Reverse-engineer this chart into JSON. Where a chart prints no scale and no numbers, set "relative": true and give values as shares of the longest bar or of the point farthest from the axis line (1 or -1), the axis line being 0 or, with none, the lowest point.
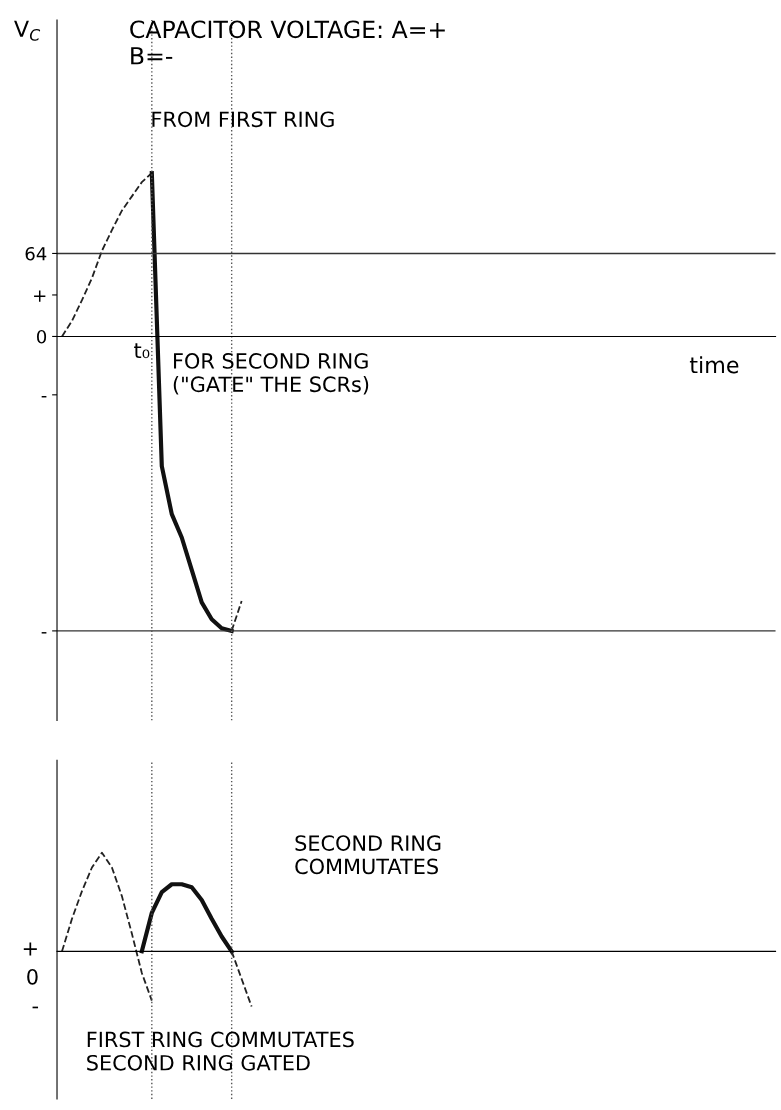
{
  "chart_data": [
    {
      "type": "line",
      "title": "CAPACITOR VOLTAGE: A=+\nB=-",
      "ylabel": "V$_{C}$",
      "xlabel": "time",
      "grid": false,
      "legend": false,
      "marker": "none",
      "tick_labels": "y",
      "categories": [
        null,
        null,
        null,
        null,
        null,
        null,
        null,
        null,
        null,
        null,
        null,
        null,
        null,
        null,
        null,
        null,
        null,
        null,
        null,
        null,
        null,
        null,
        null,
        null,
        null,
        null,
        null,
        null,
        null,
        null,
        null,
        null,
        null,
        null,
        null,
        null,
        null,
        null,
        null,
        null,
        null,
        null,
        null,
        null,
        null,
        null,
        null,
        null,
        null,
        null,
        null,
        null,
        null,
        null,
        null,
        null,
        null,
        null,
        null,
        null,
        null,
        null,
        null,
        null,
        null,
        null,
        null,
        null,
        null,
        null,
        null,
        null
      ],
      "ylim": [
        -296,
        244
      ],
      "yticks": [
        {
          "value": 64,
          "label": "64"
        },
        {
          "value": 32,
          "label": "+"
        },
        {
          "value": 0,
          "label": "0"
        },
        {
          "value": -45,
          "label": "-"
        },
        {
          "value": -227,
          "label": "-"
        }
      ],
      "ref_lines": [
        {
          "axis": "y",
          "value": 64,
          "color": "#333333",
          "line_style": "solid"
        },
        {
          "axis": "y",
          "value": -227,
          "color": "#333333",
          "line_style": "solid"
        }
      ],
      "annotations": [
        "FROM FIRST RING",
        "FOR SECOND RING\n(\"GATE\" THE SCRs)",
        "t₀"
      ],
      "series": [
        {
          "color": "#222222",
          "line_style": "dashed",
          "values": [
            0,
            12,
            28,
            45,
            66,
            82,
            97,
            108,
            119,
            126,
            null,
            null,
            null,
            null,
            null,
            null,
            null,
            null,
            null,
            null,
            null,
            null,
            null,
            null,
            null,
            null,
            null,
            null,
            null,
            null,
            null,
            null,
            null,
            null,
            null,
            null,
            null,
            null,
            null,
            null,
            null,
            null,
            null,
            null,
            null,
            null,
            null,
            null,
            null,
            null,
            null,
            null,
            null,
            null,
            null,
            null,
            null,
            null,
            null,
            null,
            null,
            null,
            null,
            null,
            null,
            null,
            null,
            null,
            null,
            null,
            null,
            null
          ]
        },
        {
          "color": "#111111",
          "line_style": "solid",
          "values": [
            null,
            null,
            null,
            null,
            null,
            null,
            null,
            null,
            null,
            126,
            -100,
            -137,
            -155,
            -180,
            -205,
            -218,
            -225,
            -227,
            null,
            null,
            null,
            null,
            null,
            null,
            null,
            null,
            null,
            null,
            null,
            null,
            null,
            null,
            null,
            null,
            null,
            null,
            null,
            null,
            null,
            null,
            null,
            null,
            null,
            null,
            null,
            null,
            null,
            null,
            null,
            null,
            null,
            null,
            null,
            null,
            null,
            null,
            null,
            null,
            null,
            null,
            null,
            null,
            null,
            null,
            null,
            null,
            null,
            null,
            null,
            null,
            null,
            null
          ]
        },
        {
          "color": "#222222",
          "line_style": "dashed",
          "values": [
            null,
            null,
            null,
            null,
            null,
            null,
            null,
            null,
            null,
            null,
            null,
            null,
            null,
            null,
            null,
            null,
            null,
            -227,
            -204,
            null,
            null,
            null,
            null,
            null,
            null,
            null,
            null,
            null,
            null,
            null,
            null,
            null,
            null,
            null,
            null,
            null,
            null,
            null,
            null,
            null,
            null,
            null,
            null,
            null,
            null,
            null,
            null,
            null,
            null,
            null,
            null,
            null,
            null,
            null,
            null,
            null,
            null,
            null,
            null,
            null,
            null,
            null,
            null,
            null,
            null,
            null,
            null,
            null,
            null,
            null,
            null,
            null
          ]
        }
      ]
    },
    {
      "type": "line",
      "relative": true,
      "grid": false,
      "legend": false,
      "marker": "none",
      "tick_labels": false,
      "categories": [
        null,
        null,
        null,
        null,
        null,
        null,
        null,
        null,
        null,
        null,
        null,
        null,
        null,
        null,
        null,
        null,
        null,
        null,
        null,
        null,
        null,
        null,
        null,
        null,
        null,
        null,
        null,
        null,
        null,
        null,
        null,
        null,
        null,
        null,
        null,
        null,
        null,
        null,
        null,
        null,
        null,
        null,
        null,
        null,
        null,
        null,
        null,
        null,
        null,
        null,
        null,
        null,
        null,
        null,
        null,
        null,
        null,
        null,
        null,
        null,
        null,
        null,
        null,
        null,
        null,
        null,
        null,
        null,
        null,
        null,
        null,
        null
      ],
      "annotations": [
        "SECOND RING\nCOMMUTATES",
        "FIRST RING COMMUTATES\nSECOND RING GATED",
        "+",
        "0",
        "-"
      ],
      "series": [
        {
          "color": "#222222",
          "line_style": "dashed",
          "values": [
            0,
            0.33,
            0.61,
            0.85,
            1,
            0.85,
            0.56,
            0.18,
            -0.22,
            -0.5,
            null,
            null,
            null,
            null,
            null,
            null,
            null,
            null,
            null,
            null,
            null,
            null,
            null,
            null,
            null,
            null,
            null,
            null,
            null,
            null,
            null,
            null,
            null,
            null,
            null,
            null,
            null,
            null,
            null,
            null,
            null,
            null,
            null,
            null,
            null,
            null,
            null,
            null,
            null,
            null,
            null,
            null,
            null,
            null,
            null,
            null,
            null,
            null,
            null,
            null,
            null,
            null,
            null,
            null,
            null,
            null,
            null,
            null,
            null,
            null,
            null,
            null
          ]
        },
        {
          "color": "#111111",
          "line_style": "solid",
          "values": [
            null,
            null,
            null,
            null,
            null,
            null,
            null,
            null,
            0,
            0.39,
            0.6,
            0.68,
            0.68,
            0.65,
            0.52,
            0.33,
            0.15,
            0,
            null,
            null,
            null,
            null,
            null,
            null,
            null,
            null,
            null,
            null,
            null,
            null,
            null,
            null,
            null,
            null,
            null,
            null,
            null,
            null,
            null,
            null,
            null,
            null,
            null,
            null,
            null,
            null,
            null,
            null,
            null,
            null,
            null,
            null,
            null,
            null,
            null,
            null,
            null,
            null,
            null,
            null,
            null,
            null,
            null,
            null,
            null,
            null,
            null,
            null,
            null,
            null,
            null,
            null
          ]
        },
        {
          "color": "#222222",
          "line_style": "dashed",
          "values": [
            null,
            null,
            null,
            null,
            null,
            null,
            null,
            null,
            null,
            null,
            null,
            null,
            null,
            null,
            null,
            null,
            null,
            0,
            -0.28,
            -0.56,
            null,
            null,
            null,
            null,
            null,
            null,
            null,
            null,
            null,
            null,
            null,
            null,
            null,
            null,
            null,
            null,
            null,
            null,
            null,
            null,
            null,
            null,
            null,
            null,
            null,
            null,
            null,
            null,
            null,
            null,
            null,
            null,
            null,
            null,
            null,
            null,
            null,
            null,
            null,
            null,
            null,
            null,
            null,
            null,
            null,
            null,
            null,
            null,
            null,
            null,
            null,
            null
          ]
        }
      ]
    }
  ]
}
